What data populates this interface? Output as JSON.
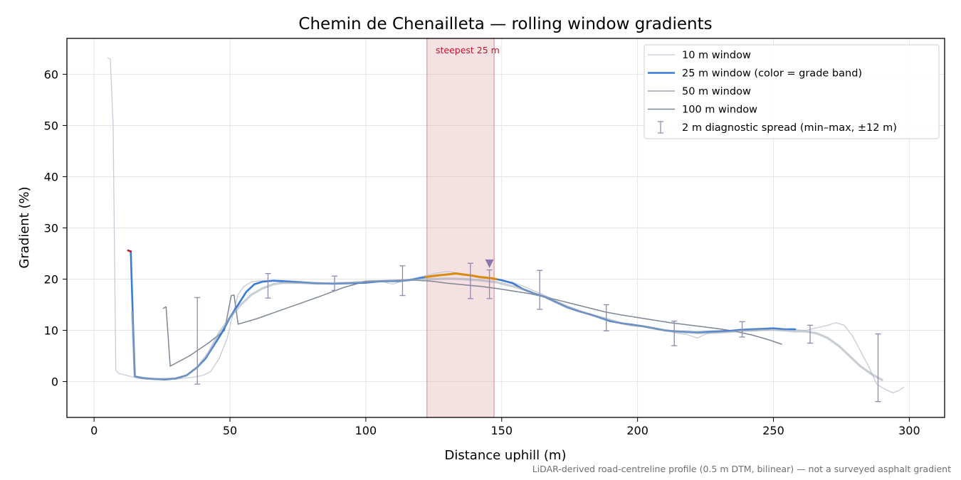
{
  "chart_data": {
    "type": "line",
    "title": "Chemin de Chenailleta — rolling window gradients",
    "xlabel": "Distance uphill (m)",
    "ylabel": "Gradient (%)",
    "xlim": [
      -10,
      313
    ],
    "ylim": [
      -7,
      67
    ],
    "x_ticks": [
      0,
      50,
      100,
      150,
      200,
      250,
      300
    ],
    "y_ticks": [
      0,
      10,
      20,
      30,
      40,
      50,
      60
    ],
    "grid": true,
    "legend_position": "upper-right",
    "footnote": "LiDAR-derived road-centreline profile (0.5 m DTM, bilinear) — not a surveyed asphalt gradient",
    "highlight": {
      "label": "steepest 25 m",
      "x_start": 122.5,
      "x_end": 147.2,
      "color": "#e8b4bb"
    },
    "peak_marker": {
      "x": 145.5,
      "y": 23.0,
      "color": "#8878a8"
    },
    "grade_band_colors": {
      "steep": "#d98b0b",
      "base": "#3a7bd5",
      "start": "#c8102e"
    },
    "series": [
      {
        "name": "10 m window",
        "color": "#c4ccd6",
        "width": 1.3,
        "points": [
          [
            5,
            63.2
          ],
          [
            6,
            63
          ],
          [
            7,
            50
          ],
          [
            8,
            2.2
          ],
          [
            9,
            1.6
          ],
          [
            12,
            1.2
          ],
          [
            14,
            0.9
          ],
          [
            16,
            0.7
          ],
          [
            18,
            0.5
          ],
          [
            22,
            0.4
          ],
          [
            26,
            0.5
          ],
          [
            30,
            0.5
          ],
          [
            34,
            0.7
          ],
          [
            37,
            0.9
          ],
          [
            40,
            1.2
          ],
          [
            43,
            2
          ],
          [
            46,
            4.5
          ],
          [
            49,
            8.5
          ],
          [
            51,
            13
          ],
          [
            53,
            17
          ],
          [
            55,
            18.5
          ],
          [
            58,
            19.5
          ],
          [
            62,
            19.7
          ],
          [
            66,
            19.6
          ],
          [
            70,
            19.3
          ],
          [
            76,
            19.2
          ],
          [
            82,
            19
          ],
          [
            88,
            19.1
          ],
          [
            94,
            19.3
          ],
          [
            100,
            19.4
          ],
          [
            106,
            19.5
          ],
          [
            110,
            19
          ],
          [
            114,
            19.8
          ],
          [
            118,
            20.2
          ],
          [
            122,
            20.7
          ],
          [
            126,
            21.2
          ],
          [
            130,
            21.5
          ],
          [
            134,
            21.2
          ],
          [
            138,
            20.8
          ],
          [
            142,
            20.3
          ],
          [
            146,
            20
          ],
          [
            150,
            19.7
          ],
          [
            154,
            19.4
          ],
          [
            158,
            18.6
          ],
          [
            162,
            17.7
          ],
          [
            166,
            16.8
          ],
          [
            170,
            15.8
          ],
          [
            174,
            14.8
          ],
          [
            178,
            14
          ],
          [
            182,
            13.2
          ],
          [
            186,
            12.5
          ],
          [
            190,
            11.8
          ],
          [
            194,
            11.3
          ],
          [
            198,
            11
          ],
          [
            202,
            10.8
          ],
          [
            206,
            10.5
          ],
          [
            210,
            10.1
          ],
          [
            214,
            9.5
          ],
          [
            218,
            9.2
          ],
          [
            222,
            8.5
          ],
          [
            226,
            9.5
          ],
          [
            230,
            9.6
          ],
          [
            234,
            9.8
          ],
          [
            238,
            10
          ],
          [
            242,
            9.9
          ],
          [
            246,
            10
          ],
          [
            250,
            10.3
          ],
          [
            254,
            10.2
          ],
          [
            258,
            10.1
          ],
          [
            262,
            10
          ],
          [
            266,
            10.5
          ],
          [
            270,
            11
          ],
          [
            273,
            11.5
          ],
          [
            276,
            11
          ],
          [
            279,
            9
          ],
          [
            282,
            6
          ],
          [
            285,
            3
          ],
          [
            288,
            -0.5
          ],
          [
            291,
            -1.5
          ],
          [
            294,
            -2.2
          ],
          [
            296,
            -1.8
          ],
          [
            298,
            -1.1
          ]
        ]
      },
      {
        "name": "25 m window (color = grade band)",
        "color": "#3a7bd5",
        "width": 2.6,
        "points": [
          [
            12.5,
            25.6
          ],
          [
            13.5,
            25.4
          ],
          [
            14.2,
            13.5
          ],
          [
            15,
            1
          ],
          [
            18,
            0.7
          ],
          [
            22,
            0.5
          ],
          [
            26,
            0.4
          ],
          [
            30,
            0.6
          ],
          [
            34,
            1.2
          ],
          [
            38,
            2.8
          ],
          [
            41,
            4.5
          ],
          [
            44,
            7
          ],
          [
            47,
            9.5
          ],
          [
            50,
            12.5
          ],
          [
            53,
            15
          ],
          [
            56,
            17.5
          ],
          [
            59,
            19
          ],
          [
            62,
            19.5
          ],
          [
            66,
            19.7
          ],
          [
            70,
            19.6
          ],
          [
            76,
            19.4
          ],
          [
            82,
            19.2
          ],
          [
            88,
            19.1
          ],
          [
            94,
            19.2
          ],
          [
            100,
            19.3
          ],
          [
            106,
            19.6
          ],
          [
            112,
            19.6
          ],
          [
            116,
            19.8
          ],
          [
            118,
            20
          ],
          [
            122,
            20.4
          ],
          [
            126,
            20.7
          ],
          [
            130,
            20.9
          ],
          [
            133,
            21.1
          ],
          [
            136,
            20.9
          ],
          [
            139,
            20.7
          ],
          [
            142,
            20.4
          ],
          [
            146,
            20.2
          ],
          [
            148,
            20
          ],
          [
            150,
            19.8
          ],
          [
            154,
            19.2
          ],
          [
            158,
            18
          ],
          [
            162,
            17.2
          ],
          [
            166,
            16.5
          ],
          [
            170,
            15.5
          ],
          [
            174,
            14.5
          ],
          [
            178,
            13.8
          ],
          [
            182,
            13.2
          ],
          [
            186,
            12.5
          ],
          [
            190,
            11.8
          ],
          [
            194,
            11.4
          ],
          [
            198,
            11.1
          ],
          [
            202,
            10.8
          ],
          [
            206,
            10.4
          ],
          [
            210,
            10
          ],
          [
            214,
            9.8
          ],
          [
            218,
            9.7
          ],
          [
            222,
            9.6
          ],
          [
            226,
            9.7
          ],
          [
            230,
            9.8
          ],
          [
            234,
            9.9
          ],
          [
            238,
            10.1
          ],
          [
            242,
            10.2
          ],
          [
            246,
            10.3
          ],
          [
            250,
            10.4
          ],
          [
            254,
            10.2
          ],
          [
            258,
            10.2
          ]
        ]
      },
      {
        "name": "50 m window",
        "color": "#9ca5b2",
        "width": 1.5,
        "points": [
          [
            14,
            13.5
          ],
          [
            15,
            1
          ],
          [
            16,
            0.8
          ],
          [
            20,
            0.6
          ],
          [
            25,
            0.5
          ],
          [
            30,
            0.6
          ],
          [
            34,
            1.2
          ],
          [
            38,
            2.8
          ],
          [
            42,
            5.5
          ],
          [
            46,
            9.5
          ],
          [
            50,
            12.5
          ],
          [
            54,
            15
          ],
          [
            58,
            17
          ],
          [
            62,
            18.2
          ],
          [
            66,
            19
          ],
          [
            70,
            19.3
          ],
          [
            76,
            19.3
          ],
          [
            82,
            19.2
          ],
          [
            88,
            19.2
          ],
          [
            94,
            19.3
          ],
          [
            100,
            19.5
          ],
          [
            106,
            19.6
          ],
          [
            112,
            19.7
          ],
          [
            118,
            19.9
          ],
          [
            124,
            20
          ],
          [
            130,
            20.1
          ],
          [
            136,
            20
          ],
          [
            142,
            19.8
          ],
          [
            148,
            19.4
          ],
          [
            154,
            18.6
          ],
          [
            158,
            18
          ],
          [
            162,
            17.2
          ],
          [
            166,
            16.5
          ],
          [
            170,
            15.5
          ],
          [
            174,
            14.6
          ],
          [
            178,
            13.8
          ],
          [
            182,
            13.2
          ],
          [
            186,
            12.6
          ],
          [
            190,
            12
          ],
          [
            194,
            11.4
          ],
          [
            198,
            11
          ],
          [
            202,
            10.8
          ],
          [
            206,
            10.4
          ],
          [
            210,
            10
          ],
          [
            214,
            9.8
          ],
          [
            218,
            9.6
          ],
          [
            222,
            9.5
          ],
          [
            226,
            9.5
          ],
          [
            230,
            9.6
          ],
          [
            234,
            9.7
          ],
          [
            238,
            9.9
          ],
          [
            242,
            10
          ],
          [
            246,
            10.1
          ],
          [
            250,
            10.1
          ],
          [
            254,
            10
          ],
          [
            258,
            9.8
          ],
          [
            262,
            9.8
          ],
          [
            266,
            9.4
          ],
          [
            270,
            8.5
          ],
          [
            274,
            7
          ],
          [
            278,
            5
          ],
          [
            282,
            3
          ],
          [
            286,
            1.5
          ],
          [
            290,
            0.3
          ]
        ]
      },
      {
        "name": "100 m window",
        "color": "#7e8794",
        "width": 1.5,
        "points": [
          [
            25.5,
            14.3
          ],
          [
            26.5,
            14.6
          ],
          [
            28,
            3
          ],
          [
            35,
            5
          ],
          [
            42,
            7.5
          ],
          [
            48,
            10
          ],
          [
            50.5,
            16.8
          ],
          [
            51.5,
            16.9
          ],
          [
            53,
            11.2
          ],
          [
            60,
            12.3
          ],
          [
            68,
            13.8
          ],
          [
            76,
            15.3
          ],
          [
            84,
            16.8
          ],
          [
            92,
            18.4
          ],
          [
            100,
            19.6
          ],
          [
            106,
            19.7
          ],
          [
            112,
            19.8
          ],
          [
            118,
            19.8
          ],
          [
            124,
            19.6
          ],
          [
            130,
            19.2
          ],
          [
            136,
            18.9
          ],
          [
            142,
            18.6
          ],
          [
            148,
            18.2
          ],
          [
            154,
            17.7
          ],
          [
            160,
            17.2
          ],
          [
            166,
            16.5
          ],
          [
            170,
            16
          ],
          [
            176,
            15.2
          ],
          [
            182,
            14.4
          ],
          [
            188,
            13.6
          ],
          [
            194,
            13
          ],
          [
            200,
            12.5
          ],
          [
            206,
            12
          ],
          [
            212,
            11.5
          ],
          [
            218,
            11.1
          ],
          [
            224,
            10.7
          ],
          [
            230,
            10.3
          ],
          [
            236,
            9.8
          ],
          [
            242,
            9.1
          ],
          [
            248,
            8.2
          ],
          [
            253,
            7.3
          ]
        ]
      },
      {
        "name": "2 m diagnostic spread (min–max, ±12 m)",
        "color": "#8e8ab0",
        "errorbars": [
          [
            38,
            -0.5,
            16.4
          ],
          [
            64,
            16.3,
            21.1
          ],
          [
            88.5,
            17.8,
            20.6
          ],
          [
            113.5,
            16.8,
            22.6
          ],
          [
            138.5,
            16.2,
            23.1
          ],
          [
            145.5,
            16.2,
            21.8
          ],
          [
            164,
            14.1,
            21.7
          ],
          [
            188.5,
            9.9,
            15
          ],
          [
            213.5,
            7,
            11.8
          ],
          [
            238.5,
            8.7,
            11.7
          ],
          [
            263.5,
            7.5,
            11
          ],
          [
            288.5,
            -3.9,
            9.3
          ]
        ]
      }
    ]
  }
}
